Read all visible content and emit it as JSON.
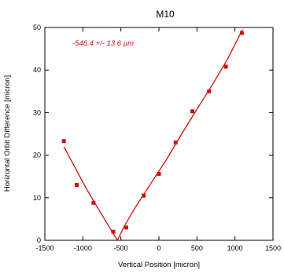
{
  "chart_data": {
    "type": "scatter",
    "title": "M10",
    "xlabel": "Vertical Position [micron]",
    "ylabel": "Horizontal Orbit Difference [micron]",
    "annotation": "-546.4 +/- 13.6 µm",
    "xlim": [
      -1500,
      1500
    ],
    "ylim": [
      0,
      50
    ],
    "xticks": [
      -1500,
      -1000,
      -500,
      0,
      500,
      1000,
      1500
    ],
    "yticks": [
      0,
      10,
      20,
      30,
      40,
      50
    ],
    "grid": false,
    "marker_color": "#cc1111",
    "fit_color": "#cc1111",
    "series": [
      {
        "points": [
          {
            "x": -1250,
            "y": 23.3
          },
          {
            "x": -1080,
            "y": 13.0
          },
          {
            "x": -860,
            "y": 8.8
          },
          {
            "x": -600,
            "y": 2.0
          },
          {
            "x": -430,
            "y": 3.0
          },
          {
            "x": -200,
            "y": 10.5
          },
          {
            "x": 0,
            "y": 15.6
          },
          {
            "x": 220,
            "y": 23.0
          },
          {
            "x": 440,
            "y": 30.3
          },
          {
            "x": 660,
            "y": 35.0
          },
          {
            "x": 880,
            "y": 40.8
          },
          {
            "x": 1090,
            "y": 48.7
          }
        ]
      }
    ],
    "fit_curve": [
      {
        "x": -1250,
        "y": 22.0
      },
      {
        "x": -1100,
        "y": 17.0
      },
      {
        "x": -950,
        "y": 12.0
      },
      {
        "x": -800,
        "y": 7.5
      },
      {
        "x": -650,
        "y": 3.0
      },
      {
        "x": -546.4,
        "y": 0.0
      },
      {
        "x": -450,
        "y": 3.5
      },
      {
        "x": -300,
        "y": 8.0
      },
      {
        "x": -100,
        "y": 13.5
      },
      {
        "x": 100,
        "y": 19.0
      },
      {
        "x": 300,
        "y": 25.0
      },
      {
        "x": 500,
        "y": 30.8
      },
      {
        "x": 700,
        "y": 36.5
      },
      {
        "x": 900,
        "y": 42.5
      },
      {
        "x": 1100,
        "y": 49.5
      }
    ]
  }
}
